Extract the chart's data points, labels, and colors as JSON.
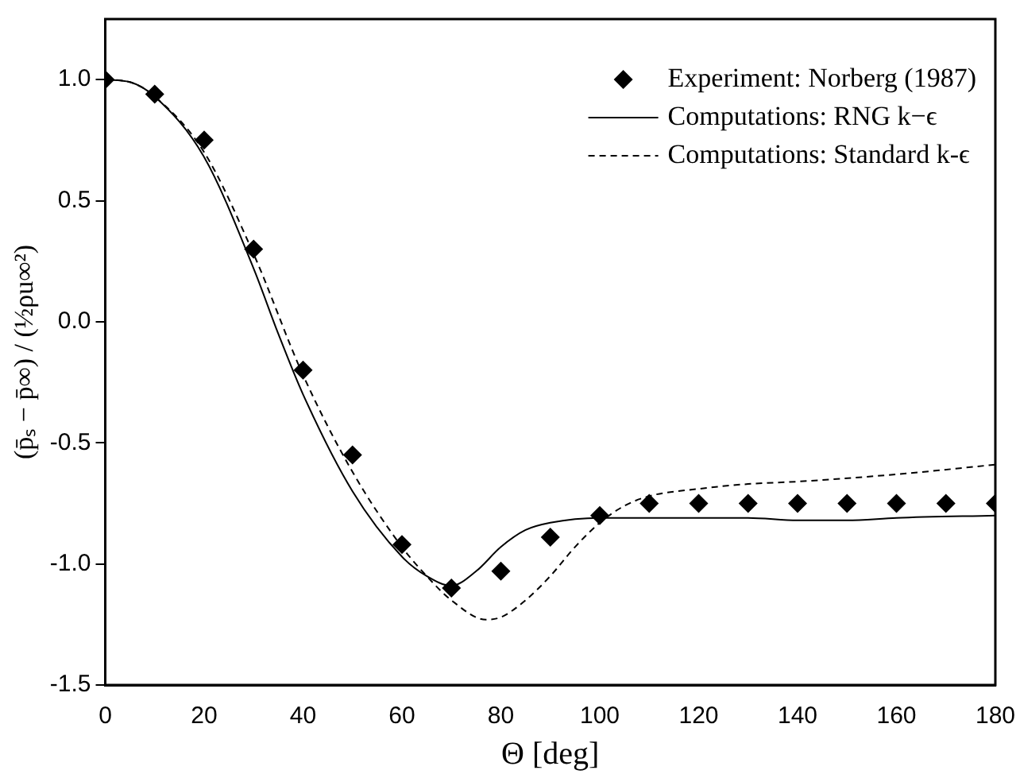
{
  "chart_data": {
    "type": "line",
    "xlabel": "Θ [deg]",
    "ylabel": "(p̄ₛ − p̄∞) / (½ρu∞²)",
    "xlim": [
      0,
      180
    ],
    "xticks": [
      0,
      20,
      40,
      60,
      80,
      100,
      120,
      140,
      160,
      180
    ],
    "ylim": [
      -1.5,
      1.25
    ],
    "yticks": [
      -1.5,
      {
        "value": -1,
        "label": "-1.0"
      },
      -0.5,
      {
        "value": 0,
        "label": "0.0"
      },
      0.5,
      {
        "value": 1,
        "label": "1.0"
      }
    ],
    "grid": false,
    "legend": "top right",
    "series": [
      {
        "name": "Experiment: Norberg (1987)",
        "type": "scatter",
        "marker": "diamond",
        "color": "#000000",
        "x": [
          0,
          10,
          20,
          30,
          40,
          50,
          60,
          70,
          80,
          90,
          100,
          110,
          120,
          130,
          140,
          150,
          160,
          170,
          180
        ],
        "values": [
          1.0,
          0.94,
          0.75,
          0.3,
          -0.2,
          -0.55,
          -0.92,
          -1.1,
          -1.03,
          -0.89,
          -0.8,
          -0.75,
          -0.75,
          -0.75,
          -0.75,
          -0.75,
          -0.75,
          -0.75,
          -0.75
        ]
      },
      {
        "name": "Computations: RNG k−ϵ",
        "line_style": "solid",
        "color": "#000000",
        "x": [
          0,
          5,
          10,
          20,
          30,
          35,
          40,
          50,
          60,
          65,
          70,
          75,
          80,
          85,
          90,
          100,
          110,
          130,
          140,
          150,
          160,
          180
        ],
        "values": [
          1.0,
          0.99,
          0.93,
          0.68,
          0.22,
          -0.05,
          -0.3,
          -0.7,
          -0.97,
          -1.05,
          -1.09,
          -1.03,
          -0.93,
          -0.86,
          -0.83,
          -0.81,
          -0.81,
          -0.81,
          -0.82,
          -0.82,
          -0.81,
          -0.8
        ]
      },
      {
        "name": "Computations: Standard k-ϵ",
        "line_style": "dashed",
        "color": "#000000",
        "x": [
          0,
          5,
          10,
          20,
          30,
          40,
          50,
          60,
          65,
          70,
          77,
          80,
          85,
          90,
          95,
          100,
          105,
          110,
          120,
          130,
          140,
          160,
          180
        ],
        "values": [
          1.0,
          0.99,
          0.93,
          0.7,
          0.28,
          -0.22,
          -0.62,
          -0.93,
          -1.05,
          -1.15,
          -1.23,
          -1.22,
          -1.15,
          -1.05,
          -0.93,
          -0.83,
          -0.76,
          -0.72,
          -0.69,
          -0.67,
          -0.66,
          -0.63,
          -0.59
        ]
      }
    ]
  }
}
